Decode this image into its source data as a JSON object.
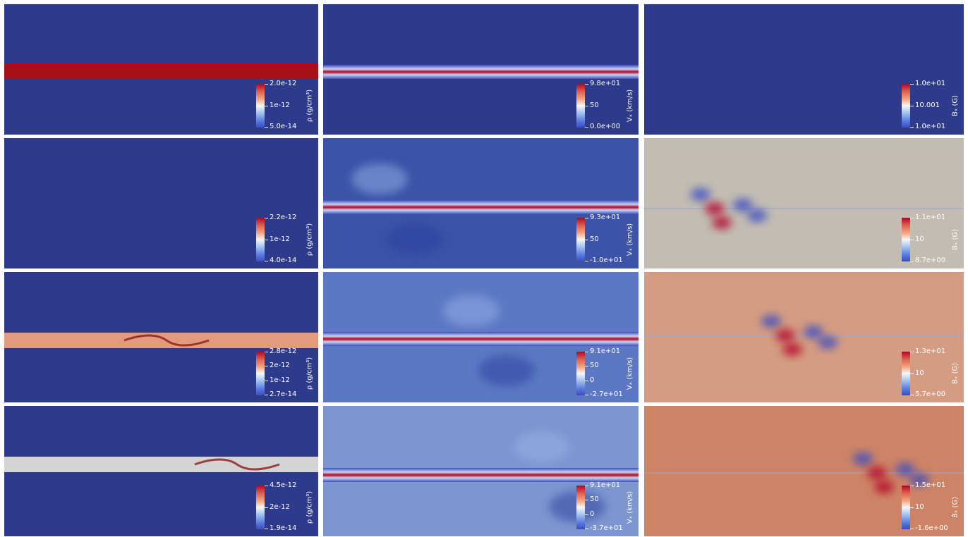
{
  "colors": {
    "background_deep": "#2e3b8c",
    "coolwarm_low": "#3b4cc0",
    "coolwarm_mid": "#f7f7f7",
    "coolwarm_high": "#b40426",
    "separator": "#ffffff"
  },
  "columns": [
    {
      "id": "density",
      "unit_label": "ρ (g/cm³)"
    },
    {
      "id": "vx",
      "unit_label": "Vₓ (km/s)"
    },
    {
      "id": "bx",
      "unit_label": "Bₓ (G)"
    }
  ],
  "panels": [
    {
      "row": 1,
      "col": "density",
      "bg": "#2e3b8c",
      "ticks": [
        "2.0e-12",
        "1e-12",
        "5.0e-14"
      ]
    },
    {
      "row": 1,
      "col": "vx",
      "bg": "#2e3b8c",
      "ticks": [
        "9.8e+01",
        "50",
        "0.0e+00"
      ]
    },
    {
      "row": 1,
      "col": "bx",
      "bg": "#2e3b8c",
      "ticks": [
        "1.0e+01",
        "10.001",
        "1.0e+01"
      ]
    },
    {
      "row": 2,
      "col": "density",
      "bg": "#2e3b8c",
      "ticks": [
        "2.2e-12",
        "1e-12",
        "4.0e-14"
      ]
    },
    {
      "row": 2,
      "col": "vx",
      "bg": "#3c53a8",
      "ticks": [
        "9.3e+01",
        "50",
        "-1.0e+01"
      ]
    },
    {
      "row": 2,
      "col": "bx",
      "bg": "#c2bcb2",
      "ticks": [
        "1.1e+01",
        "10",
        "8.7e+00"
      ]
    },
    {
      "row": 3,
      "col": "density",
      "bg": "#2e3b8c",
      "ticks": [
        "2.8e-12",
        "2e-12",
        "1e-12",
        "2.7e-14"
      ]
    },
    {
      "row": 3,
      "col": "vx",
      "bg": "#5c78c4",
      "ticks": [
        "9.1e+01",
        "50",
        "0",
        "-2.7e+01"
      ]
    },
    {
      "row": 3,
      "col": "bx",
      "bg": "#d49c82",
      "ticks": [
        "1.3e+01",
        "10",
        "5.7e+00"
      ]
    },
    {
      "row": 4,
      "col": "density",
      "bg": "#2e3b8c",
      "ticks": [
        "4.5e-12",
        "2e-12",
        "1.9e-14"
      ]
    },
    {
      "row": 4,
      "col": "vx",
      "bg": "#7d96d0",
      "ticks": [
        "9.1e+01",
        "50",
        "0",
        "-3.7e+01"
      ]
    },
    {
      "row": 4,
      "col": "bx",
      "bg": "#cd8466",
      "ticks": [
        "1.5e+01",
        "10",
        "-1.6e+00"
      ]
    }
  ]
}
